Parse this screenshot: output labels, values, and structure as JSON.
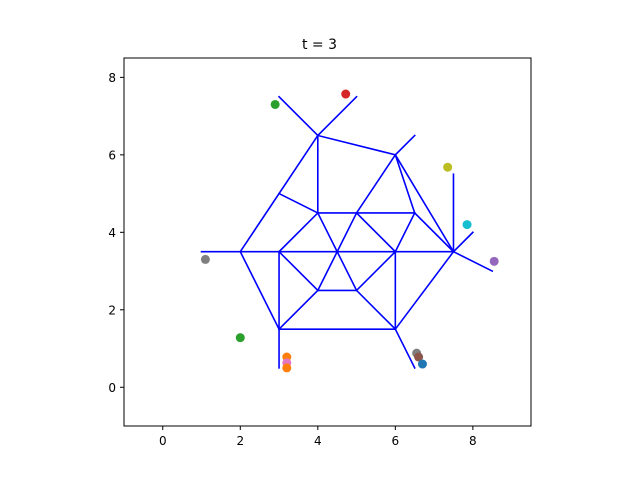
{
  "chart_data": {
    "type": "scatter",
    "title": "t = 3",
    "xlabel": "",
    "ylabel": "",
    "xlim": [
      -1.0,
      9.5
    ],
    "ylim": [
      -1.0,
      8.5
    ],
    "grid": false,
    "x_ticks": [
      0,
      2,
      4,
      6,
      8
    ],
    "y_ticks": [
      0,
      2,
      4,
      6,
      8
    ],
    "x_tick_labels": [
      "0",
      "2",
      "4",
      "6",
      "8"
    ],
    "y_tick_labels": [
      "0",
      "2",
      "4",
      "6",
      "8"
    ],
    "line_color": "#0000ff",
    "segments": [
      [
        [
          4,
          6.5
        ],
        [
          6,
          6
        ]
      ],
      [
        [
          6,
          6
        ],
        [
          7.5,
          3.5
        ]
      ],
      [
        [
          7.5,
          3.5
        ],
        [
          6,
          1.5
        ]
      ],
      [
        [
          6,
          1.5
        ],
        [
          3,
          1.5
        ]
      ],
      [
        [
          3,
          1.5
        ],
        [
          2,
          3.5
        ]
      ],
      [
        [
          2,
          3.5
        ],
        [
          4,
          6.5
        ]
      ],
      [
        [
          4,
          6.5
        ],
        [
          4,
          4.5
        ]
      ],
      [
        [
          6,
          6
        ],
        [
          5,
          4.5
        ]
      ],
      [
        [
          6,
          6
        ],
        [
          6.5,
          4.5
        ]
      ],
      [
        [
          3,
          5
        ],
        [
          4,
          4.5
        ]
      ],
      [
        [
          4,
          4.5
        ],
        [
          6.5,
          4.5
        ]
      ],
      [
        [
          4,
          4.5
        ],
        [
          3,
          3.5
        ]
      ],
      [
        [
          4,
          4.5
        ],
        [
          5,
          2.5
        ]
      ],
      [
        [
          5,
          4.5
        ],
        [
          4,
          2.5
        ]
      ],
      [
        [
          5,
          4.5
        ],
        [
          6,
          3.5
        ]
      ],
      [
        [
          6.5,
          4.5
        ],
        [
          6,
          3.5
        ]
      ],
      [
        [
          6.5,
          4.5
        ],
        [
          7.5,
          3.5
        ]
      ],
      [
        [
          1,
          3.5
        ],
        [
          7.5,
          3.5
        ]
      ],
      [
        [
          3,
          3.5
        ],
        [
          4,
          2.5
        ]
      ],
      [
        [
          3,
          3.5
        ],
        [
          3,
          1.5
        ]
      ],
      [
        [
          4,
          2.5
        ],
        [
          5,
          2.5
        ]
      ],
      [
        [
          4,
          2.5
        ],
        [
          3,
          1.5
        ]
      ],
      [
        [
          5,
          2.5
        ],
        [
          6,
          3.5
        ]
      ],
      [
        [
          5,
          2.5
        ],
        [
          6,
          1.5
        ]
      ],
      [
        [
          6,
          3.5
        ],
        [
          6,
          1.5
        ]
      ],
      [
        [
          3,
          1.5
        ],
        [
          3,
          0.5
        ]
      ],
      [
        [
          6,
          1.5
        ],
        [
          6.5,
          0.5
        ]
      ],
      [
        [
          4,
          6.5
        ],
        [
          3,
          7.5
        ]
      ],
      [
        [
          4,
          6.5
        ],
        [
          5,
          7.5
        ]
      ],
      [
        [
          6,
          6
        ],
        [
          6.5,
          6.5
        ]
      ],
      [
        [
          7.5,
          3.5
        ],
        [
          7.5,
          5.5
        ]
      ],
      [
        [
          7.5,
          3.5
        ],
        [
          8,
          4
        ]
      ],
      [
        [
          7.5,
          3.5
        ],
        [
          8.5,
          3
        ]
      ]
    ],
    "points": [
      {
        "x": 4.72,
        "y": 7.57,
        "color": "#d62728"
      },
      {
        "x": 2.9,
        "y": 7.3,
        "color": "#2ca02c"
      },
      {
        "x": 7.35,
        "y": 5.68,
        "color": "#bcbd22"
      },
      {
        "x": 7.85,
        "y": 4.2,
        "color": "#17becf"
      },
      {
        "x": 8.55,
        "y": 3.25,
        "color": "#9467bd"
      },
      {
        "x": 1.1,
        "y": 3.3,
        "color": "#7f7f7f"
      },
      {
        "x": 2.0,
        "y": 1.28,
        "color": "#2ca02c"
      },
      {
        "x": 3.2,
        "y": 0.78,
        "color": "#ff7f0e"
      },
      {
        "x": 3.2,
        "y": 0.63,
        "color": "#e377c2"
      },
      {
        "x": 3.2,
        "y": 0.5,
        "color": "#ff7f0e"
      },
      {
        "x": 6.55,
        "y": 0.88,
        "color": "#7f7f7f"
      },
      {
        "x": 6.6,
        "y": 0.78,
        "color": "#8c564b"
      },
      {
        "x": 6.7,
        "y": 0.6,
        "color": "#1f77b4"
      }
    ]
  }
}
